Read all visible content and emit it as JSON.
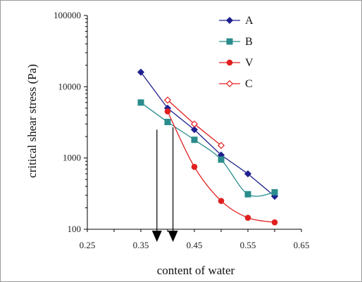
{
  "chart_data": {
    "type": "line",
    "title": "",
    "xlabel": "content of water",
    "ylabel": "critical shear stress (Pa)",
    "xlim": [
      0.25,
      0.65
    ],
    "ylim": [
      100,
      100000
    ],
    "yscale": "log",
    "x_ticks": [
      "0.25",
      "0.35",
      "0.45",
      "0.55",
      "0.65"
    ],
    "y_ticks": [
      "100",
      "1000",
      "10000",
      "100000"
    ],
    "grid": false,
    "legend_position": "top-right",
    "series": [
      {
        "name": "A",
        "color": "#1f1f8f",
        "marker": "diamond-filled",
        "smooth": false,
        "x": [
          0.35,
          0.4,
          0.45,
          0.5,
          0.55,
          0.6
        ],
        "y": [
          16000,
          5000,
          2500,
          1100,
          600,
          290
        ]
      },
      {
        "name": "B",
        "color": "#2a8c8c",
        "marker": "square-filled",
        "smooth": true,
        "x": [
          0.35,
          0.4,
          0.45,
          0.5,
          0.55,
          0.6
        ],
        "y": [
          6000,
          3200,
          1800,
          950,
          310,
          330
        ]
      },
      {
        "name": "V",
        "color": "#e02020",
        "marker": "circle-filled",
        "smooth": true,
        "x": [
          0.4,
          0.45,
          0.5,
          0.55,
          0.6
        ],
        "y": [
          4500,
          750,
          250,
          145,
          125
        ]
      },
      {
        "name": "C",
        "color": "#e02020",
        "marker": "diamond-open",
        "smooth": false,
        "x": [
          0.4,
          0.45,
          0.5
        ],
        "y": [
          6500,
          3000,
          1500
        ]
      }
    ],
    "annotations": [
      {
        "type": "down-arrow",
        "x": 0.38,
        "y_top": 2500,
        "y_bottom": 100
      },
      {
        "type": "down-arrow",
        "x": 0.41,
        "y_top": 2700,
        "y_bottom": 100
      }
    ]
  }
}
